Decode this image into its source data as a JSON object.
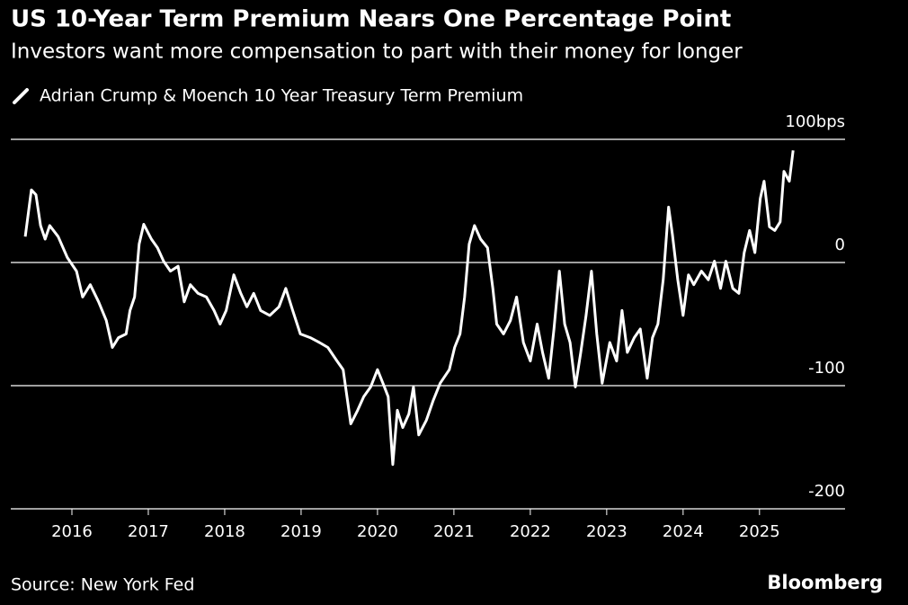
{
  "chart_data": {
    "type": "line",
    "title": "US 10-Year Term Premium Nears One Percentage Point",
    "subtitle": "Investors want more compensation to part with their money for longer",
    "source": "Source: New York Fed",
    "credit": "Bloomberg",
    "x": [
      2015.39,
      2015.47,
      2015.53,
      2015.59,
      2015.65,
      2015.71,
      2015.82,
      2015.94,
      2016.06,
      2016.14,
      2016.24,
      2016.35,
      2016.45,
      2016.53,
      2016.61,
      2016.71,
      2016.76,
      2016.82,
      2016.88,
      2016.94,
      2017.04,
      2017.12,
      2017.2,
      2017.29,
      2017.39,
      2017.47,
      2017.55,
      2017.65,
      2017.76,
      2017.86,
      2017.94,
      2018.02,
      2018.12,
      2018.21,
      2018.29,
      2018.38,
      2018.47,
      2018.59,
      2018.71,
      2018.8,
      2018.89,
      2018.99,
      2019.12,
      2019.24,
      2019.35,
      2019.47,
      2019.55,
      2019.65,
      2019.74,
      2019.82,
      2019.91,
      2020.0,
      2020.09,
      2020.14,
      2020.2,
      2020.26,
      2020.33,
      2020.41,
      2020.47,
      2020.54,
      2020.64,
      2020.73,
      2020.82,
      2020.94,
      2021.01,
      2021.08,
      2021.14,
      2021.2,
      2021.27,
      2021.35,
      2021.44,
      2021.51,
      2021.56,
      2021.65,
      2021.74,
      2021.82,
      2021.91,
      2022.0,
      2022.09,
      2022.16,
      2022.24,
      2022.31,
      2022.38,
      2022.45,
      2022.52,
      2022.59,
      2022.66,
      2022.73,
      2022.8,
      2022.87,
      2022.94,
      2023.04,
      2023.13,
      2023.2,
      2023.27,
      2023.36,
      2023.44,
      2023.53,
      2023.6,
      2023.67,
      2023.74,
      2023.81,
      2023.86,
      2023.93,
      2024.0,
      2024.07,
      2024.14,
      2024.24,
      2024.33,
      2024.41,
      2024.49,
      2024.56,
      2024.65,
      2024.73,
      2024.8,
      2024.87,
      2024.94,
      2025.01,
      2025.06,
      2025.13,
      2025.2,
      2025.27,
      2025.32,
      2025.39,
      2025.44
    ],
    "series": [
      {
        "name": "Adrian Crump & Moench 10 Year Treasury Term Premium",
        "color": "#ffffff",
        "values": [
          21,
          59,
          55,
          30,
          19,
          30,
          21,
          4,
          -7,
          -28,
          -18,
          -32,
          -47,
          -69,
          -61,
          -58,
          -39,
          -28,
          15,
          31,
          19,
          12,
          1,
          -7,
          -3,
          -32,
          -18,
          -25,
          -28,
          -39,
          -50,
          -39,
          -10,
          -25,
          -36,
          -25,
          -39,
          -43,
          -36,
          -21,
          -39,
          -58,
          -61,
          -65,
          -69,
          -80,
          -87,
          -131,
          -120,
          -109,
          -101,
          -87,
          -101,
          -109,
          -164,
          -120,
          -134,
          -123,
          -101,
          -140,
          -128,
          -112,
          -98,
          -87,
          -69,
          -58,
          -28,
          15,
          30,
          19,
          12,
          -21,
          -50,
          -58,
          -47,
          -28,
          -65,
          -80,
          -50,
          -73,
          -94,
          -54,
          -7,
          -50,
          -65,
          -101,
          -73,
          -43,
          -7,
          -58,
          -98,
          -65,
          -80,
          -39,
          -73,
          -61,
          -54,
          -94,
          -61,
          -50,
          -14,
          45,
          23,
          -14,
          -43,
          -10,
          -18,
          -7,
          -14,
          1,
          -21,
          1,
          -21,
          -25,
          8,
          26,
          8,
          52,
          66,
          29,
          26,
          33,
          74,
          66,
          91
        ]
      }
    ],
    "xlim": [
      2015.2,
      2026.12
    ],
    "xticks": [
      2016,
      2017,
      2018,
      2019,
      2020,
      2021,
      2022,
      2023,
      2024,
      2025
    ],
    "ylim": [
      -200,
      100
    ],
    "yticks": [
      {
        "value": 100,
        "label": "100bps"
      },
      0,
      -100,
      -200
    ],
    "grid": true
  }
}
